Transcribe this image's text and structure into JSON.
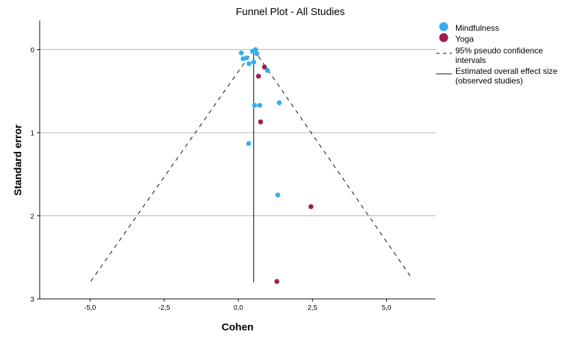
{
  "chart_data": {
    "type": "scatter",
    "title": "Funnel Plot - All Studies",
    "xlabel": "Cohen",
    "ylabel": "Standard error",
    "xlim": [
      -6.7,
      6.65
    ],
    "ylim": [
      -0.35,
      3.0
    ],
    "y_inverted": true,
    "grid": "horizontal",
    "legend_position": "top-right, outside plot",
    "x_ticks": [
      -5.0,
      -2.5,
      0.0,
      2.5,
      5.0
    ],
    "x_tick_labels": [
      "-5,0",
      "-2,5",
      "0,0",
      "2,5",
      "5,0"
    ],
    "y_ticks": [
      0,
      1,
      2,
      3
    ],
    "y_tick_labels": [
      "0",
      "1",
      "2",
      "3"
    ],
    "overall_effect": 0.52,
    "ci_max_se": 2.8,
    "ci_lines": {
      "left": [
        [
          0.52,
          0.0
        ],
        [
          -5.0,
          2.8
        ]
      ],
      "right": [
        [
          0.52,
          0.0
        ],
        [
          5.85,
          2.75
        ]
      ]
    },
    "series": [
      {
        "name": "Mindfulness",
        "color": "#33aff0",
        "points": [
          [
            0.1,
            0.04
          ],
          [
            0.16,
            0.11
          ],
          [
            0.28,
            0.1
          ],
          [
            0.36,
            0.17
          ],
          [
            0.52,
            0.15
          ],
          [
            0.48,
            0.02
          ],
          [
            0.58,
            0.0
          ],
          [
            0.63,
            0.05
          ],
          [
            0.98,
            0.25
          ],
          [
            0.55,
            0.67
          ],
          [
            0.72,
            0.67
          ],
          [
            1.38,
            0.64
          ],
          [
            0.35,
            1.13
          ],
          [
            1.33,
            1.75
          ]
        ]
      },
      {
        "name": "Yoga",
        "color": "#9e1f4f",
        "points": [
          [
            0.88,
            0.21
          ],
          [
            0.68,
            0.32
          ],
          [
            0.75,
            0.87
          ],
          [
            2.45,
            1.89
          ],
          [
            1.3,
            2.79
          ]
        ]
      }
    ],
    "legend": [
      {
        "label": "Mindfulness",
        "symbol": "circle",
        "color": "#33aff0"
      },
      {
        "label": "Yoga",
        "symbol": "circle",
        "color": "#9e1f4f"
      },
      {
        "label_lines": [
          "95% pseudo confidence",
          "intervals"
        ],
        "symbol": "dashed-line",
        "color": "#000000"
      },
      {
        "label_lines": [
          "Estimated overall effect size",
          "(observed studies)"
        ],
        "symbol": "solid-line",
        "color": "#000000"
      }
    ]
  }
}
